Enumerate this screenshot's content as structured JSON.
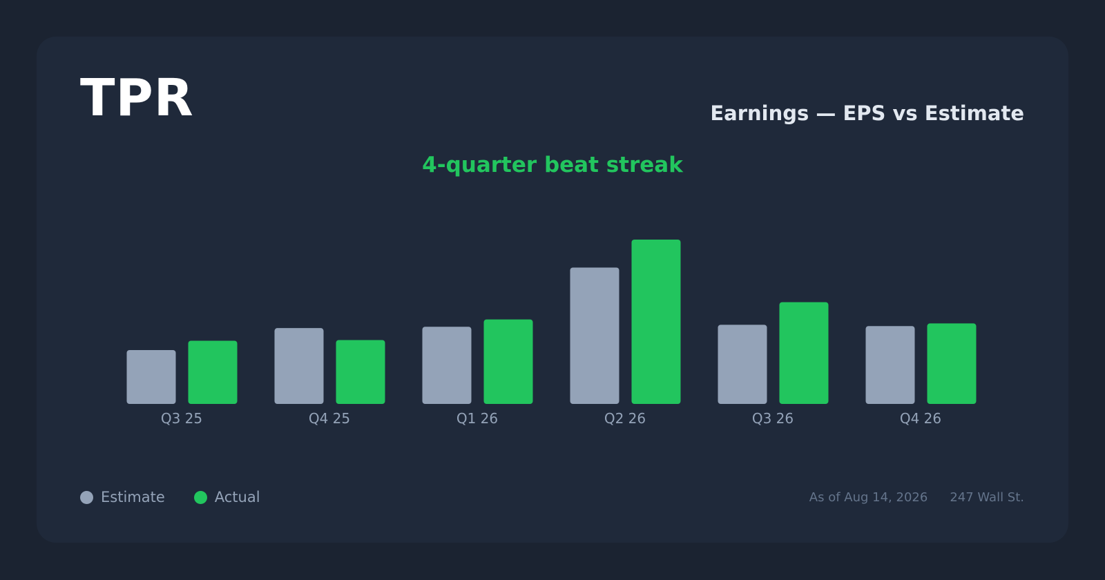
{
  "header": {
    "ticker": "TPR",
    "title": "Earnings — EPS vs Estimate",
    "streak": "4-quarter beat streak"
  },
  "legend": {
    "estimate_label": "Estimate",
    "actual_label": "Actual"
  },
  "footer": {
    "as_of": "As of Aug 14, 2026",
    "source": "247 Wall St."
  },
  "colors": {
    "estimate": "#94a3b8",
    "actual": "#22c55e",
    "background": "#1b2331",
    "card": "#1f293a"
  },
  "chart_data": {
    "type": "bar",
    "title": "Earnings — EPS vs Estimate",
    "categories": [
      "Q3 25",
      "Q4 25",
      "Q1 26",
      "Q2 26",
      "Q3 26",
      "Q4 26"
    ],
    "series": [
      {
        "name": "Estimate",
        "values": [
          0.81,
          1.14,
          1.16,
          2.05,
          1.19,
          1.17
        ]
      },
      {
        "name": "Actual",
        "values": [
          0.95,
          0.96,
          1.27,
          2.47,
          1.53,
          1.21
        ]
      }
    ],
    "ylim": [
      0,
      2.47
    ],
    "grid": false,
    "legend_position": "bottom-left"
  }
}
